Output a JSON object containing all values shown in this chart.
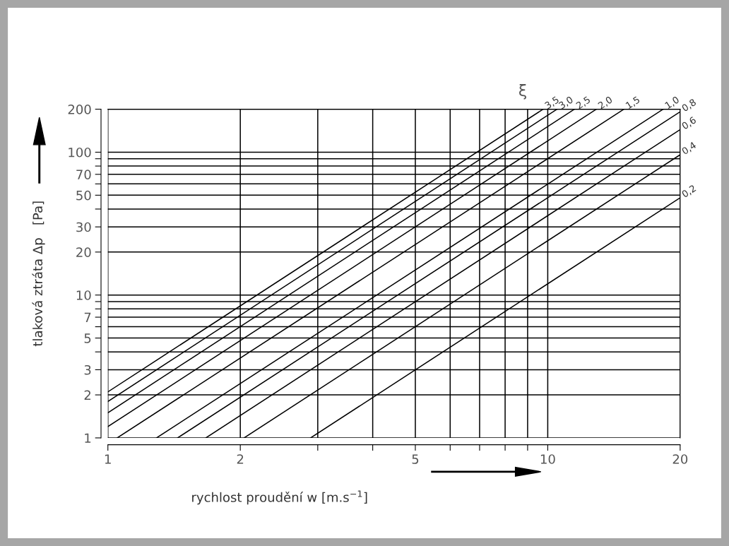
{
  "chart_data": {
    "type": "line",
    "xlabel": "rychlost proudění w [m.s$^{−1}$]",
    "ylabel": "tlaková ztráta Δp   [Pa]",
    "annotations": [
      "ξ"
    ],
    "log": "xy",
    "xlim": [
      1,
      20
    ],
    "ylim": [
      1,
      200
    ],
    "xticks": [
      1,
      2,
      {
        "value": 3,
        "label": null
      },
      {
        "value": 4,
        "label": null
      },
      5,
      {
        "value": 6,
        "label": null
      },
      {
        "value": 7,
        "label": null
      },
      {
        "value": 8,
        "label": null
      },
      {
        "value": 9,
        "label": null
      },
      10,
      20
    ],
    "yticks": [
      1,
      2,
      3,
      {
        "value": 4,
        "label": null
      },
      5,
      {
        "value": 6,
        "label": null
      },
      7,
      {
        "value": 8,
        "label": null
      },
      {
        "value": 9,
        "label": null
      },
      10,
      20,
      30,
      {
        "value": 40,
        "label": null
      },
      50,
      {
        "value": 60,
        "label": null
      },
      70,
      {
        "value": 80,
        "label": null
      },
      {
        "value": 90,
        "label": null
      },
      100,
      200
    ],
    "grid": true,
    "legend": false,
    "marker": "none",
    "line_style": "solid",
    "series": [
      {
        "name": "3,5",
        "color": "#000000",
        "x": [
          1,
          9.76
        ],
        "values": [
          2.1,
          200
        ]
      },
      {
        "name": "3,0",
        "color": "#000000",
        "x": [
          1,
          10.5
        ],
        "values": [
          1.8,
          200
        ]
      },
      {
        "name": "2,5",
        "color": "#000000",
        "x": [
          1,
          11.5
        ],
        "values": [
          1.5,
          200
        ]
      },
      {
        "name": "2,0",
        "color": "#000000",
        "x": [
          1,
          12.9
        ],
        "values": [
          1.2,
          200
        ]
      },
      {
        "name": "1,5",
        "color": "#000000",
        "x": [
          1.05,
          14.9
        ],
        "values": [
          1,
          200
        ]
      },
      {
        "name": "1,0",
        "color": "#000000",
        "x": [
          1.29,
          18.3
        ],
        "values": [
          1,
          200
        ]
      },
      {
        "name": "0,8",
        "color": "#000000",
        "x": [
          1.44,
          20
        ],
        "values": [
          1,
          192
        ]
      },
      {
        "name": "0,6",
        "color": "#000000",
        "x": [
          1.67,
          20
        ],
        "values": [
          1,
          144
        ]
      },
      {
        "name": "0,4",
        "color": "#000000",
        "x": [
          2.04,
          20
        ],
        "values": [
          1,
          96
        ]
      },
      {
        "name": "0,2",
        "color": "#000000",
        "x": [
          2.89,
          20
        ],
        "values": [
          1,
          48
        ]
      }
    ]
  }
}
